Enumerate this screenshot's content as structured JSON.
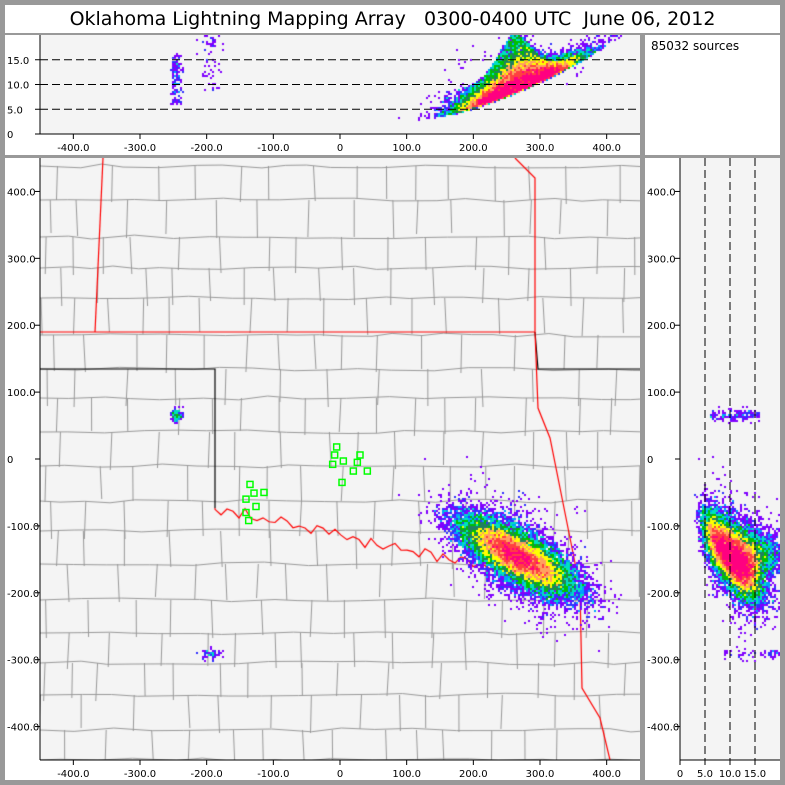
{
  "title": "Oklahoma Lightning Mapping Array   0300-0400 UTC  June 06, 2012",
  "info": {
    "source_count": "85032 sources"
  },
  "colors": {
    "background": "#999999",
    "plot_bg": "#f4f4f4",
    "state_border": "#ff0000",
    "county_border": "#999999",
    "station": "#00ff00",
    "density_scale": [
      "#8000ff",
      "#3030ff",
      "#00a0ff",
      "#00e0c0",
      "#00c000",
      "#208060",
      "#ffff00",
      "#ffa060",
      "#ff4040",
      "#ff0080"
    ]
  },
  "chart_data": [
    {
      "type": "scatter",
      "panel": "altitude-vs-east-west",
      "xlim": [
        -450,
        450
      ],
      "ylim": [
        0,
        20
      ],
      "x_ticks": [
        "-400.0",
        "-300.0",
        "-200.0",
        "-100.0",
        "0",
        "100.0",
        "200.0",
        "300.0",
        "400.0"
      ],
      "x_tick_values": [
        -400,
        -300,
        -200,
        -100,
        0,
        100,
        200,
        300,
        400
      ],
      "y_ticks": [
        "0",
        "5.0",
        "10.0",
        "15.0"
      ],
      "y_tick_values": [
        0,
        5,
        10,
        15
      ],
      "dashed_lines": [
        5,
        10,
        15
      ]
    },
    {
      "type": "map",
      "panel": "plan-view",
      "xlim": [
        -450,
        450
      ],
      "ylim": [
        -450,
        450
      ],
      "x_ticks": [
        "-400.0",
        "-300.0",
        "-200.0",
        "-100.0",
        "0",
        "100.0",
        "200.0",
        "300.0",
        "400.0"
      ],
      "x_tick_values": [
        -400,
        -300,
        -200,
        -100,
        0,
        100,
        200,
        300,
        400
      ],
      "y_ticks": [
        "400.0",
        "300.0",
        "200.0",
        "100.0",
        "0",
        "-100.0",
        "-200.0",
        "-300.0",
        "-400.0"
      ],
      "y_tick_values": [
        400,
        300,
        200,
        100,
        0,
        -100,
        -200,
        -300,
        -400
      ],
      "stations": [
        [
          -5,
          18
        ],
        [
          -8,
          6
        ],
        [
          -11,
          -8
        ],
        [
          5,
          -3
        ],
        [
          20,
          -18
        ],
        [
          30,
          6
        ],
        [
          41,
          -18
        ],
        [
          3,
          -35
        ],
        [
          26,
          -5
        ],
        [
          -135,
          -38
        ],
        [
          -129,
          -51
        ],
        [
          -141,
          -60
        ],
        [
          -126,
          -71
        ],
        [
          -141,
          -80
        ],
        [
          -137,
          -92
        ],
        [
          -114,
          -50
        ]
      ],
      "storm_core": [
        270,
        -140
      ]
    },
    {
      "type": "scatter",
      "panel": "north-south-vs-altitude",
      "xlim": [
        0,
        20
      ],
      "ylim": [
        -450,
        450
      ],
      "x_ticks": [
        "0",
        "5.0",
        "10.0",
        "15.0"
      ],
      "x_tick_values": [
        0,
        5,
        10,
        15
      ],
      "y_ticks": [
        "400.0",
        "300.0",
        "200.0",
        "100.0",
        "0",
        "-100.0",
        "-200.0",
        "-300.0",
        "-400.0"
      ],
      "y_tick_values": [
        400,
        300,
        200,
        100,
        0,
        -100,
        -200,
        -300,
        -400
      ],
      "dashed_lines": [
        5,
        10,
        15
      ]
    }
  ]
}
